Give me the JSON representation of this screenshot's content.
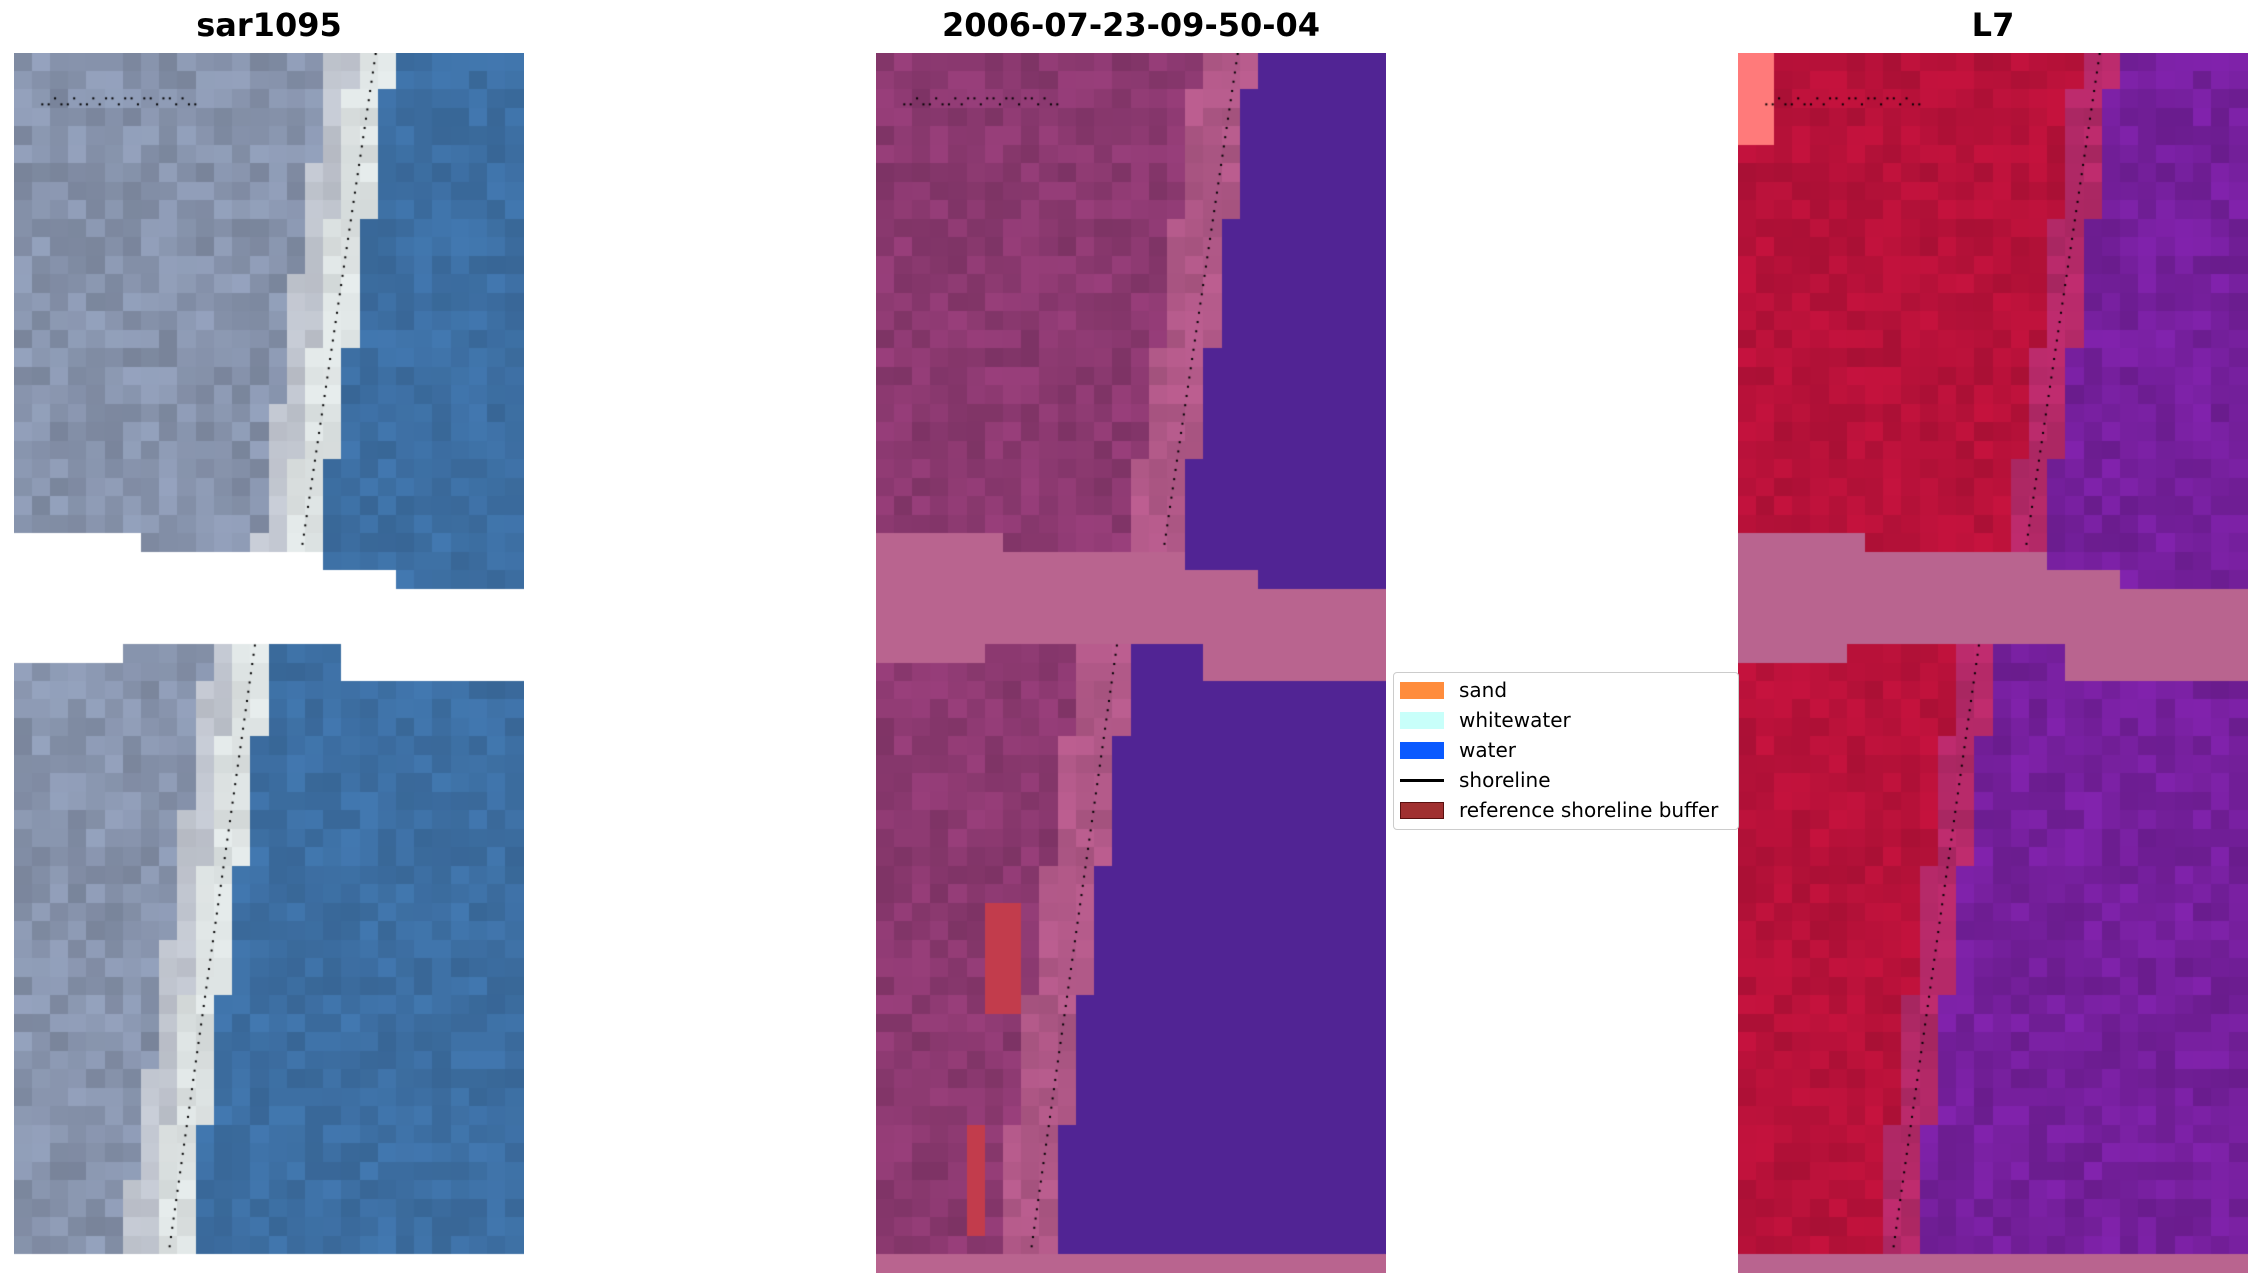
{
  "figure": {
    "titles": [
      "sar1095",
      "2006-07-23-09-50-04",
      "L7"
    ]
  },
  "legend": {
    "items": [
      {
        "label": "sand",
        "color": "#ff8c3c",
        "kind": "patch"
      },
      {
        "label": "whitewater",
        "color": "#c8fffa",
        "kind": "patch"
      },
      {
        "label": "water",
        "color": "#0a5aff",
        "kind": "patch"
      },
      {
        "label": "shoreline",
        "color": "#000000",
        "kind": "line"
      },
      {
        "label": "reference shoreline buffer",
        "color": "#a03030",
        "kind": "patch"
      }
    ]
  },
  "colors": {
    "rgb_water": "#3d6fa3",
    "rgb_whitewater": "#e8eeee",
    "rgb_land": "#8e9bb5",
    "class_water": "#512494",
    "class_land": "#8e3a72",
    "class_mask": "#b9648f",
    "class_buffer": "#c23c4c",
    "index_land": "#c0123c",
    "index_water": "#7820a0"
  }
}
